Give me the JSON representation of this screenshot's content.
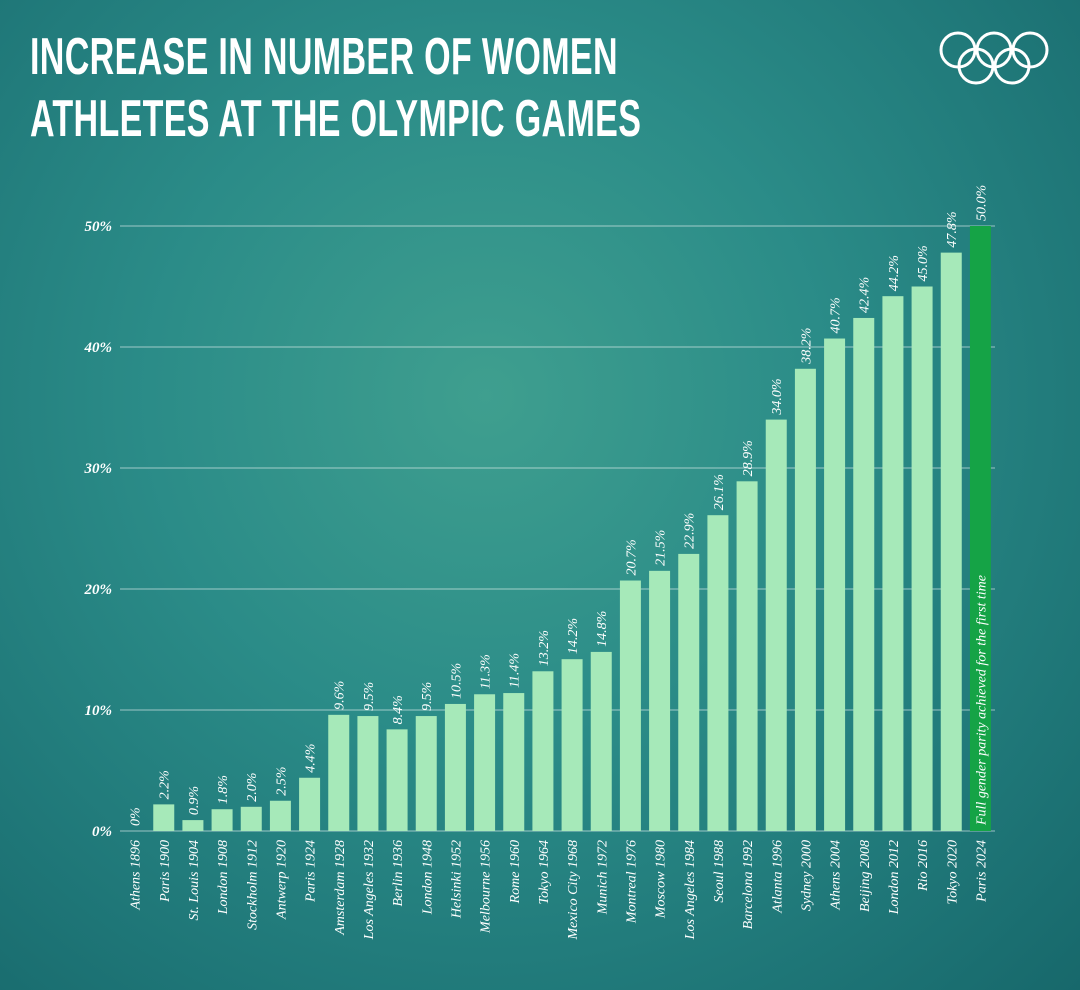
{
  "chart_data": {
    "type": "bar",
    "title": "INCREASE IN NUMBER OF WOMEN ATHLETES AT THE OLYMPIC GAMES",
    "categories": [
      "Athens 1896",
      "Paris 1900",
      "St. Louis 1904",
      "London 1908",
      "Stockholm 1912",
      "Antwerp 1920",
      "Paris 1924",
      "Amsterdam 1928",
      "Los Angeles 1932",
      "Berlin 1936",
      "London 1948",
      "Helsinki 1952",
      "Melbourne 1956",
      "Rome 1960",
      "Tokyo 1964",
      "Mexico City 1968",
      "Munich 1972",
      "Montreal 1976",
      "Moscow 1980",
      "Los Angeles 1984",
      "Seoul 1988",
      "Barcelona 1992",
      "Atlanta 1996",
      "Sydney 2000",
      "Athens 2004",
      "Beijing 2008",
      "London 2012",
      "Rio 2016",
      "Tokyo 2020",
      "Paris 2024"
    ],
    "values": [
      0,
      2.2,
      0.9,
      1.8,
      2.0,
      2.5,
      4.4,
      9.6,
      9.5,
      8.4,
      9.5,
      10.5,
      11.3,
      11.4,
      13.2,
      14.2,
      14.8,
      20.7,
      21.5,
      22.9,
      26.1,
      28.9,
      34.0,
      38.2,
      40.7,
      42.4,
      44.2,
      45.0,
      47.8,
      50.0
    ],
    "value_labels": [
      "0%",
      "2.2%",
      "0.9%",
      "1.8%",
      "2.0%",
      "2.5%",
      "4.4%",
      "9.6%",
      "9.5%",
      "8.4%",
      "9.5%",
      "10.5%",
      "11.3%",
      "11.4%",
      "13.2%",
      "14.2%",
      "14.8%",
      "20.7%",
      "21.5%",
      "22.9%",
      "26.1%",
      "28.9%",
      "34.0%",
      "38.2%",
      "40.7%",
      "42.4%",
      "44.2%",
      "45.0%",
      "47.8%",
      "50.0%"
    ],
    "colors": [
      "#a6e9b9",
      "#a6e9b9",
      "#a6e9b9",
      "#a6e9b9",
      "#a6e9b9",
      "#a6e9b9",
      "#a6e9b9",
      "#a6e9b9",
      "#a6e9b9",
      "#a6e9b9",
      "#a6e9b9",
      "#a6e9b9",
      "#a6e9b9",
      "#a6e9b9",
      "#a6e9b9",
      "#a6e9b9",
      "#a6e9b9",
      "#a6e9b9",
      "#a6e9b9",
      "#a6e9b9",
      "#a6e9b9",
      "#a6e9b9",
      "#a6e9b9",
      "#a6e9b9",
      "#a6e9b9",
      "#a6e9b9",
      "#a6e9b9",
      "#a6e9b9",
      "#a6e9b9",
      "#15a346"
    ],
    "annotation": "Full gender parity achieved for the first time",
    "ylim": [
      0,
      50
    ],
    "yticks": [
      {
        "value": 0,
        "label": "0%"
      },
      {
        "value": 10,
        "label": "10%"
      },
      {
        "value": 20,
        "label": "20%"
      },
      {
        "value": 30,
        "label": "30%"
      },
      {
        "value": 40,
        "label": "40%"
      },
      {
        "value": 50,
        "label": "50%"
      }
    ],
    "grid": true
  }
}
